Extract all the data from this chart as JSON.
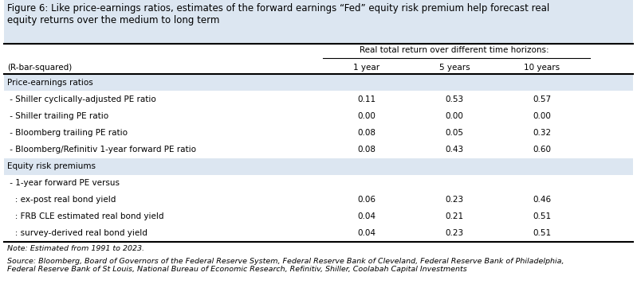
{
  "title": "Figure 6: Like price-earnings ratios, estimates of the forward earnings “Fed” equity risk premium help forecast real\nequity returns over the medium to long term",
  "title_bg": "#dce6f1",
  "col_header_underline_label": "Real total return over different time horizons:",
  "col_header_label": "(R-bar-squared)",
  "col_headers": [
    "1 year",
    "5 years",
    "10 years"
  ],
  "section_bg": "#dce6f1",
  "rows": [
    {
      "label": "Price-earnings ratios",
      "type": "section",
      "values": [
        null,
        null,
        null
      ]
    },
    {
      "label": " - Shiller cyclically-adjusted PE ratio",
      "type": "data",
      "values": [
        "0.11",
        "0.53",
        "0.57"
      ]
    },
    {
      "label": " - Shiller trailing PE ratio",
      "type": "data",
      "values": [
        "0.00",
        "0.00",
        "0.00"
      ]
    },
    {
      "label": " - Bloomberg trailing PE ratio",
      "type": "data",
      "values": [
        "0.08",
        "0.05",
        "0.32"
      ]
    },
    {
      "label": " - Bloomberg/Refinitiv 1-year forward PE ratio",
      "type": "data",
      "values": [
        "0.08",
        "0.43",
        "0.60"
      ]
    },
    {
      "label": "Equity risk premiums",
      "type": "section",
      "values": [
        null,
        null,
        null
      ]
    },
    {
      "label": " - 1-year forward PE versus",
      "type": "subheader",
      "values": [
        null,
        null,
        null
      ]
    },
    {
      "label": "   : ex-post real bond yield",
      "type": "data",
      "values": [
        "0.06",
        "0.23",
        "0.46"
      ]
    },
    {
      "label": "   : FRB CLE estimated real bond yield",
      "type": "data",
      "values": [
        "0.04",
        "0.21",
        "0.51"
      ]
    },
    {
      "label": "   : survey-derived real bond yield",
      "type": "data",
      "values": [
        "0.04",
        "0.23",
        "0.51"
      ]
    }
  ],
  "note": "Note: Estimated from 1991 to 2023.",
  "source": "Source: Bloomberg, Board of Governors of the Federal Reserve System, Federal Reserve Bank of Cleveland, Federal Reserve Bank of Philadelphia,\nFederal Reserve Bank of St Louis, National Bureau of Economic Research, Refinitiv, Shiller, Coolabah Capital Investments"
}
